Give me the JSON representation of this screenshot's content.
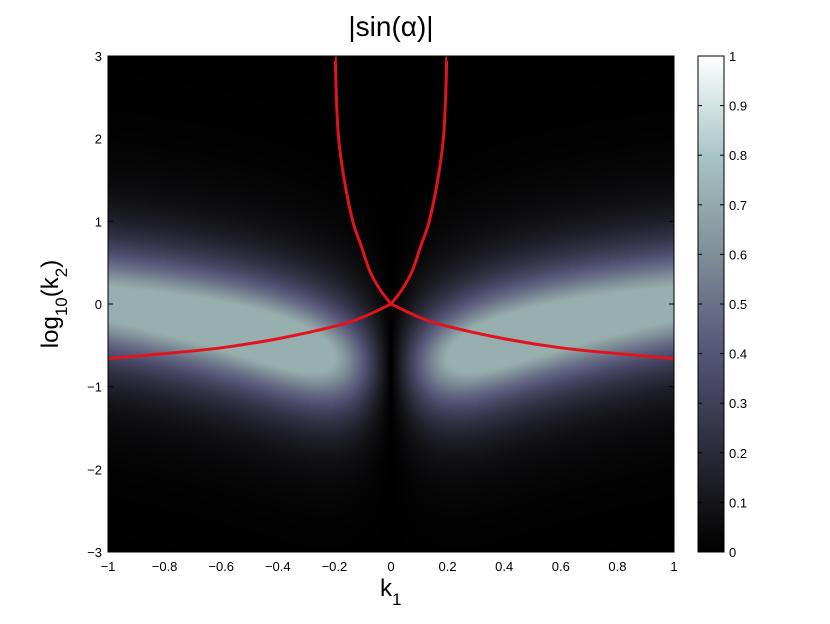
{
  "chart_data": {
    "type": "heatmap",
    "title": "|sin(α)|",
    "xlabel": {
      "base": "k",
      "sub": "1"
    },
    "ylabel": {
      "base": "log",
      "sub1": "10",
      "mid": "(k",
      "sub2": "2",
      "end": ")"
    },
    "xlim": [
      -1,
      1
    ],
    "ylim": [
      -3,
      3
    ],
    "x_ticks": [
      -1,
      -0.8,
      -0.6,
      -0.4,
      -0.2,
      0,
      0.2,
      0.4,
      0.6,
      0.8,
      1
    ],
    "x_tick_labels": [
      "−1",
      "−0.8",
      "−0.6",
      "−0.4",
      "−0.2",
      "0",
      "0.2",
      "0.4",
      "0.6",
      "0.8",
      "1"
    ],
    "y_ticks": [
      -3,
      -2,
      -1,
      0,
      1,
      2,
      3
    ],
    "y_tick_labels": [
      "−3",
      "−2",
      "−1",
      "0",
      "1",
      "2",
      "3"
    ],
    "colorbar": {
      "range": [
        0,
        1
      ],
      "ticks": [
        0,
        0.1,
        0.2,
        0.3,
        0.4,
        0.5,
        0.6,
        0.7,
        0.8,
        0.9,
        1
      ],
      "tick_labels": [
        "0",
        "0.1",
        "0.2",
        "0.3",
        "0.4",
        "0.5",
        "0.6",
        "0.7",
        "0.8",
        "0.9",
        "1"
      ],
      "colormap": "bone",
      "colors": [
        "#000000",
        "#151519",
        "#2a2a3a",
        "#3f3f59",
        "#555577",
        "#6a7088",
        "#7f8e99",
        "#94aaaa",
        "#aac5c5",
        "#d3e2e2",
        "#ffffff"
      ]
    },
    "contour_color": "#e0141c",
    "contours": [
      {
        "name": "",
        "points": [
          [
            -0.197,
            3
          ],
          [
            -0.193,
            2.5
          ],
          [
            -0.185,
            2
          ],
          [
            -0.165,
            1.5
          ],
          [
            -0.135,
            1
          ],
          [
            -0.105,
            0.7
          ],
          [
            -0.075,
            0.4
          ],
          [
            -0.04,
            0.18
          ],
          [
            0,
            0
          ]
        ]
      },
      {
        "name": "",
        "points": [
          [
            0.197,
            3
          ],
          [
            0.193,
            2.5
          ],
          [
            0.185,
            2
          ],
          [
            0.165,
            1.5
          ],
          [
            0.135,
            1
          ],
          [
            0.105,
            0.7
          ],
          [
            0.075,
            0.4
          ],
          [
            0.04,
            0.18
          ],
          [
            0,
            0
          ]
        ]
      },
      {
        "name": "",
        "points": [
          [
            -1,
            -0.66
          ],
          [
            -0.8,
            -0.6
          ],
          [
            -0.6,
            -0.53
          ],
          [
            -0.4,
            -0.42
          ],
          [
            -0.2,
            -0.27
          ],
          [
            -0.1,
            -0.16
          ],
          [
            0,
            0
          ]
        ]
      },
      {
        "name": "",
        "points": [
          [
            1,
            -0.66
          ],
          [
            0.8,
            -0.6
          ],
          [
            0.6,
            -0.53
          ],
          [
            0.4,
            -0.42
          ],
          [
            0.2,
            -0.27
          ],
          [
            0.1,
            -0.16
          ],
          [
            0,
            0
          ]
        ]
      }
    ]
  }
}
